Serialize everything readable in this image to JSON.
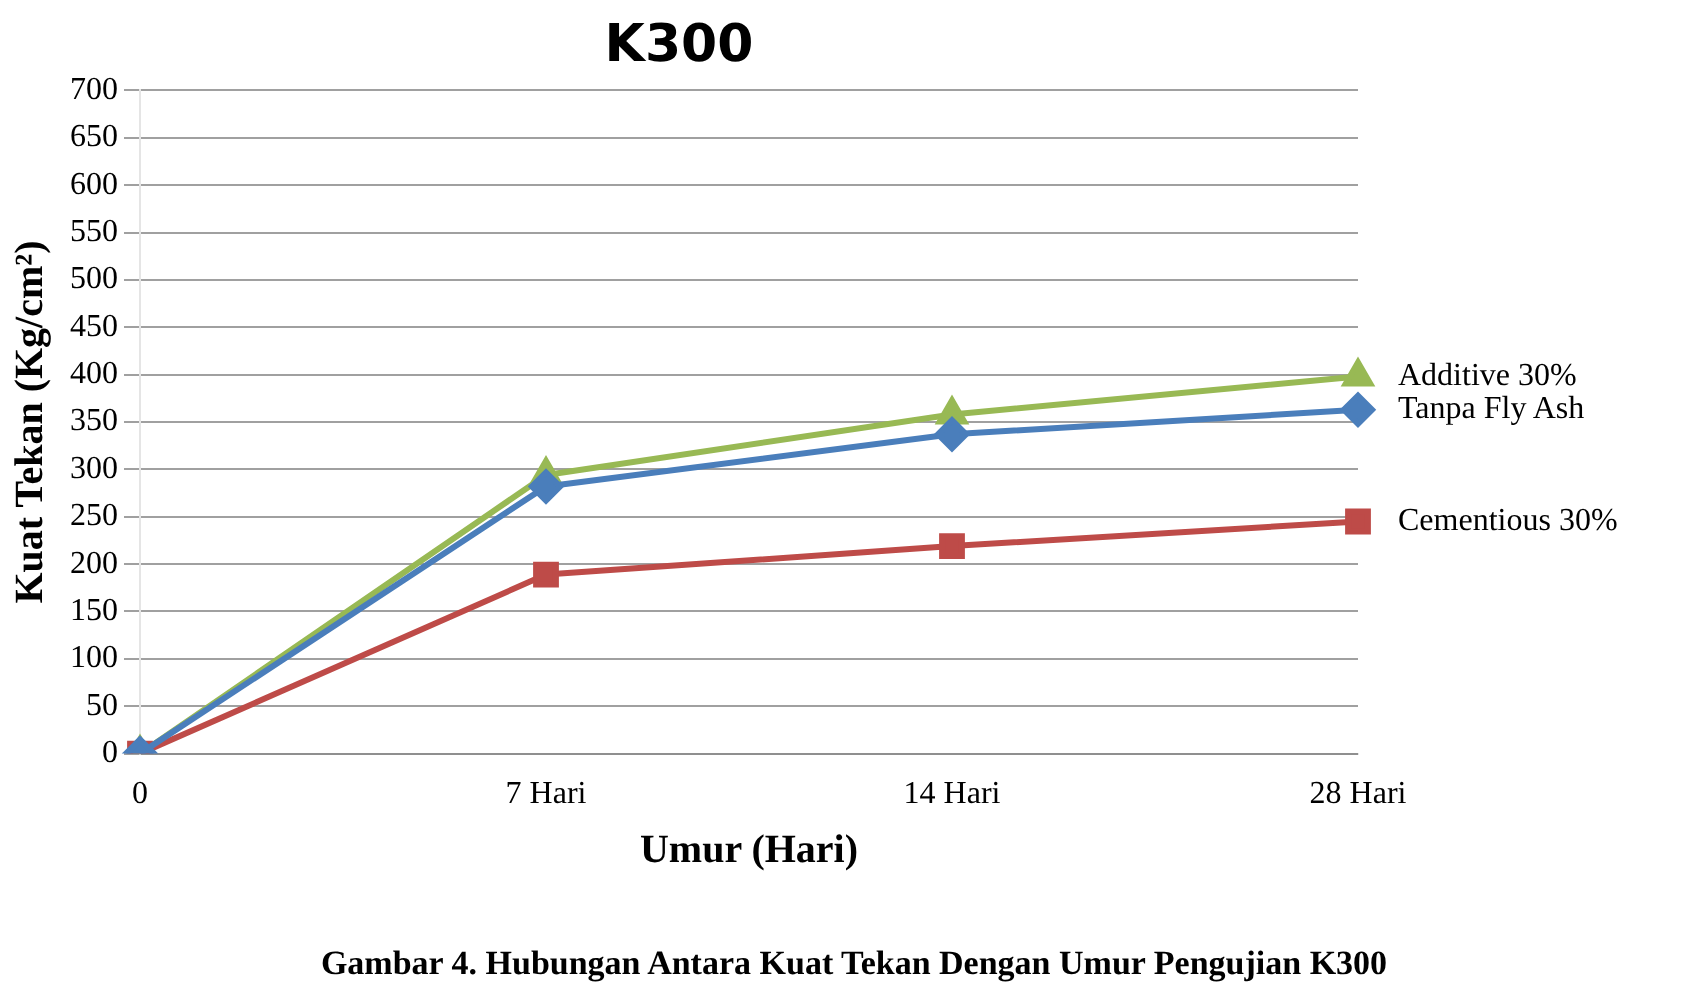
{
  "chart_data": {
    "type": "line",
    "title": "K300",
    "xlabel": "Umur (Hari)",
    "ylabel": "Kuat Tekan (Kg/cm²)",
    "categories": [
      "0",
      "7 Hari",
      "14 Hari",
      "28 Hari"
    ],
    "series": [
      {
        "name": "Tanpa Fly Ash",
        "color": "#4a7ebb",
        "marker": "diamond",
        "values": [
          0,
          282,
          337,
          363
        ]
      },
      {
        "name": "Cementious 30%",
        "color": "#be4b48",
        "marker": "square",
        "values": [
          0,
          189,
          219,
          245
        ]
      },
      {
        "name": "Additive 30%",
        "color": "#98b954",
        "marker": "triangle",
        "values": [
          0,
          294,
          358,
          398
        ]
      }
    ],
    "ylim": [
      0,
      700
    ],
    "yticks": [
      0,
      50,
      100,
      150,
      200,
      250,
      300,
      350,
      400,
      450,
      500,
      550,
      600,
      650,
      700
    ],
    "grid": "y",
    "legend": false,
    "annotations": [
      "Gambar 4. Hubungan Antara Kuat Tekan Dengan Umur Pengujian K300"
    ]
  }
}
